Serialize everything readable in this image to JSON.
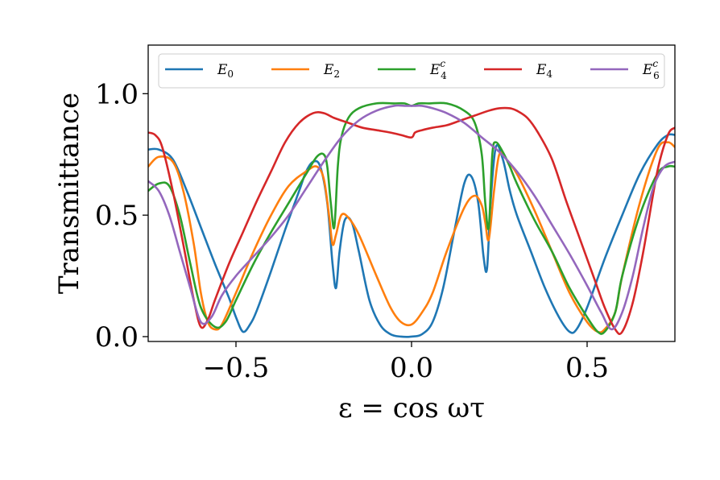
{
  "chart_data": {
    "type": "line",
    "title": "",
    "xlabel": "ε = cos ωτ",
    "ylabel": "Transmittance",
    "xlim": [
      -0.75,
      0.75
    ],
    "ylim": [
      -0.02,
      1.2
    ],
    "xticks": [
      -0.5,
      0.0,
      0.5
    ],
    "xtick_labels": [
      "−0.5",
      "0.0",
      "0.5"
    ],
    "yticks": [
      0.0,
      0.5,
      1.0
    ],
    "ytick_labels": [
      "0.0",
      "0.5",
      "1.0"
    ],
    "grid": false,
    "legend_position": "top",
    "series": [
      {
        "name": "E0",
        "label_main": "E",
        "label_sub": "0",
        "label_sup": "",
        "color": "#1f77b4",
        "x": [
          -0.75,
          -0.72,
          -0.68,
          -0.64,
          -0.6,
          -0.56,
          -0.52,
          -0.5,
          -0.48,
          -0.46,
          -0.44,
          -0.4,
          -0.36,
          -0.32,
          -0.3,
          -0.28,
          -0.26,
          -0.24,
          -0.225,
          -0.215,
          -0.205,
          -0.19,
          -0.17,
          -0.15,
          -0.12,
          -0.09,
          -0.06,
          -0.03,
          0.0,
          0.03,
          0.06,
          0.09,
          0.12,
          0.15,
          0.17,
          0.19,
          0.205,
          0.215,
          0.225,
          0.24,
          0.26,
          0.28,
          0.3,
          0.34,
          0.38,
          0.42,
          0.45,
          0.47,
          0.5,
          0.55,
          0.6,
          0.65,
          0.7,
          0.73,
          0.75
        ],
        "y": [
          0.77,
          0.77,
          0.73,
          0.6,
          0.45,
          0.3,
          0.16,
          0.08,
          0.02,
          0.05,
          0.11,
          0.27,
          0.44,
          0.6,
          0.68,
          0.72,
          0.7,
          0.55,
          0.3,
          0.2,
          0.35,
          0.48,
          0.47,
          0.35,
          0.15,
          0.05,
          0.01,
          0.0,
          0.0,
          0.01,
          0.06,
          0.2,
          0.42,
          0.63,
          0.66,
          0.55,
          0.33,
          0.28,
          0.55,
          0.78,
          0.73,
          0.6,
          0.5,
          0.35,
          0.2,
          0.08,
          0.02,
          0.03,
          0.12,
          0.32,
          0.5,
          0.67,
          0.79,
          0.83,
          0.83
        ]
      },
      {
        "name": "E2",
        "label_main": "E",
        "label_sub": "2",
        "label_sup": "",
        "color": "#ff7f0e",
        "x": [
          -0.75,
          -0.72,
          -0.68,
          -0.65,
          -0.62,
          -0.6,
          -0.58,
          -0.56,
          -0.54,
          -0.5,
          -0.45,
          -0.4,
          -0.35,
          -0.3,
          -0.27,
          -0.25,
          -0.235,
          -0.225,
          -0.215,
          -0.2,
          -0.18,
          -0.15,
          -0.1,
          -0.06,
          -0.03,
          0.0,
          0.03,
          0.06,
          0.1,
          0.15,
          0.18,
          0.2,
          0.21,
          0.22,
          0.235,
          0.25,
          0.27,
          0.3,
          0.35,
          0.4,
          0.45,
          0.5,
          0.53,
          0.55,
          0.58,
          0.6,
          0.65,
          0.7,
          0.73,
          0.75
        ],
        "y": [
          0.7,
          0.74,
          0.72,
          0.6,
          0.38,
          0.18,
          0.06,
          0.03,
          0.05,
          0.18,
          0.35,
          0.5,
          0.62,
          0.68,
          0.7,
          0.65,
          0.5,
          0.38,
          0.42,
          0.5,
          0.49,
          0.42,
          0.25,
          0.12,
          0.06,
          0.05,
          0.1,
          0.18,
          0.35,
          0.53,
          0.58,
          0.54,
          0.47,
          0.4,
          0.6,
          0.75,
          0.73,
          0.67,
          0.52,
          0.35,
          0.18,
          0.06,
          0.02,
          0.03,
          0.1,
          0.25,
          0.55,
          0.77,
          0.8,
          0.78
        ]
      },
      {
        "name": "E4c",
        "label_main": "E",
        "label_sub": "4",
        "label_sup": "c",
        "color": "#2ca02c",
        "x": [
          -0.75,
          -0.72,
          -0.69,
          -0.66,
          -0.63,
          -0.6,
          -0.56,
          -0.53,
          -0.5,
          -0.45,
          -0.4,
          -0.35,
          -0.3,
          -0.27,
          -0.25,
          -0.24,
          -0.23,
          -0.22,
          -0.21,
          -0.2,
          -0.18,
          -0.15,
          -0.1,
          -0.05,
          -0.02,
          0.0,
          0.02,
          0.05,
          0.1,
          0.15,
          0.18,
          0.2,
          0.21,
          0.22,
          0.23,
          0.24,
          0.26,
          0.28,
          0.3,
          0.35,
          0.4,
          0.45,
          0.5,
          0.53,
          0.55,
          0.58,
          0.6,
          0.65,
          0.7,
          0.73,
          0.75
        ],
        "y": [
          0.6,
          0.63,
          0.62,
          0.5,
          0.3,
          0.12,
          0.04,
          0.06,
          0.15,
          0.3,
          0.43,
          0.55,
          0.67,
          0.74,
          0.75,
          0.7,
          0.55,
          0.45,
          0.7,
          0.82,
          0.9,
          0.94,
          0.96,
          0.96,
          0.96,
          0.95,
          0.96,
          0.96,
          0.96,
          0.93,
          0.88,
          0.75,
          0.55,
          0.45,
          0.75,
          0.8,
          0.76,
          0.7,
          0.63,
          0.48,
          0.35,
          0.2,
          0.08,
          0.02,
          0.02,
          0.1,
          0.25,
          0.5,
          0.67,
          0.7,
          0.7
        ]
      },
      {
        "name": "E4",
        "label_main": "E",
        "label_sub": "4",
        "label_sup": "",
        "color": "#d62728",
        "x": [
          -0.75,
          -0.73,
          -0.71,
          -0.68,
          -0.65,
          -0.62,
          -0.6,
          -0.58,
          -0.56,
          -0.52,
          -0.48,
          -0.44,
          -0.4,
          -0.36,
          -0.32,
          -0.28,
          -0.25,
          -0.22,
          -0.18,
          -0.14,
          -0.1,
          -0.06,
          -0.03,
          0.0,
          0.01,
          0.03,
          0.06,
          0.1,
          0.14,
          0.18,
          0.22,
          0.25,
          0.28,
          0.3,
          0.33,
          0.36,
          0.4,
          0.44,
          0.48,
          0.52,
          0.55,
          0.58,
          0.6,
          0.63,
          0.66,
          0.7,
          0.73,
          0.75
        ],
        "y": [
          0.84,
          0.83,
          0.78,
          0.6,
          0.38,
          0.15,
          0.04,
          0.07,
          0.15,
          0.3,
          0.43,
          0.56,
          0.68,
          0.8,
          0.88,
          0.92,
          0.92,
          0.9,
          0.88,
          0.86,
          0.85,
          0.84,
          0.83,
          0.82,
          0.84,
          0.85,
          0.86,
          0.87,
          0.89,
          0.91,
          0.93,
          0.94,
          0.94,
          0.93,
          0.9,
          0.84,
          0.73,
          0.56,
          0.4,
          0.24,
          0.12,
          0.03,
          0.02,
          0.14,
          0.35,
          0.68,
          0.83,
          0.86
        ]
      },
      {
        "name": "E6c",
        "label_main": "E",
        "label_sub": "6",
        "label_sup": "c",
        "color": "#9467bd",
        "x": [
          -0.75,
          -0.72,
          -0.69,
          -0.66,
          -0.63,
          -0.6,
          -0.57,
          -0.54,
          -0.5,
          -0.45,
          -0.4,
          -0.35,
          -0.3,
          -0.25,
          -0.2,
          -0.15,
          -0.1,
          -0.05,
          -0.02,
          0.0,
          0.01,
          0.03,
          0.06,
          0.1,
          0.15,
          0.2,
          0.25,
          0.3,
          0.35,
          0.4,
          0.45,
          0.5,
          0.54,
          0.57,
          0.6,
          0.63,
          0.66,
          0.69,
          0.72,
          0.75
        ],
        "y": [
          0.64,
          0.6,
          0.5,
          0.35,
          0.2,
          0.06,
          0.08,
          0.17,
          0.25,
          0.33,
          0.41,
          0.5,
          0.61,
          0.72,
          0.82,
          0.89,
          0.93,
          0.95,
          0.95,
          0.95,
          0.95,
          0.95,
          0.94,
          0.92,
          0.88,
          0.82,
          0.76,
          0.68,
          0.58,
          0.46,
          0.34,
          0.21,
          0.1,
          0.03,
          0.1,
          0.25,
          0.45,
          0.62,
          0.7,
          0.72
        ]
      }
    ]
  }
}
